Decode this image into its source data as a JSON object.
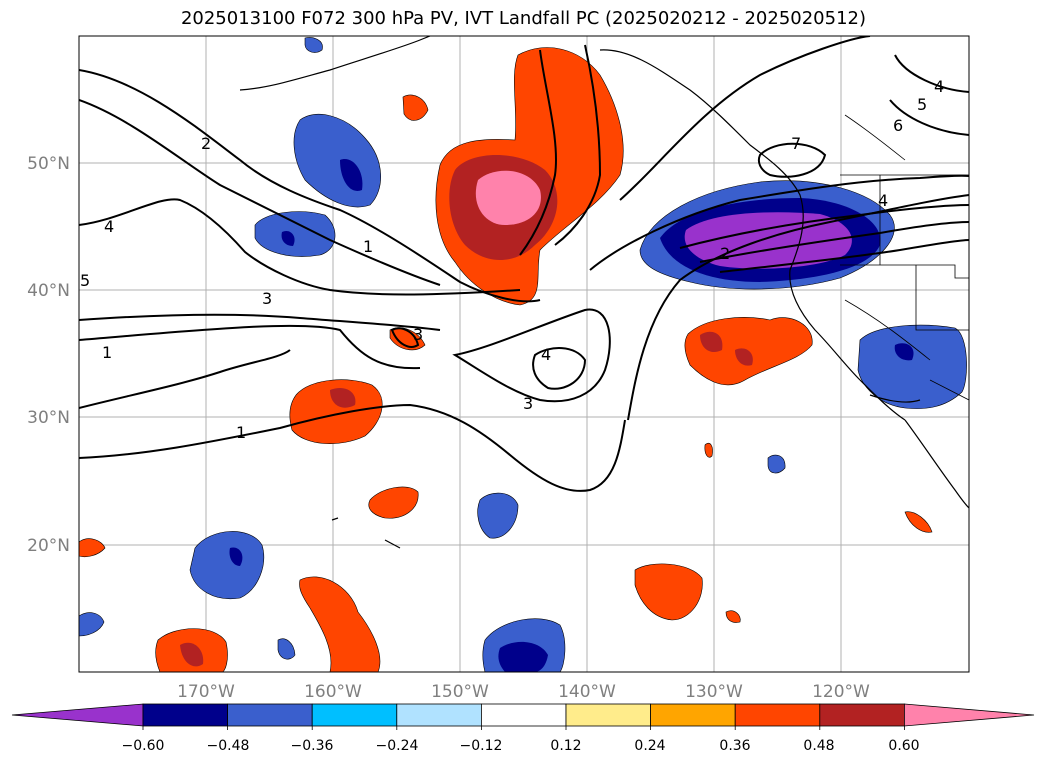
{
  "title": "2025013100 F072 300 hPa PV, IVT Landfall PC (2025020212 - 2025020512)",
  "map": {
    "lon_ticks": [
      "170°W",
      "160°W",
      "150°W",
      "140°W",
      "130°W",
      "120°W"
    ],
    "lat_ticks": [
      "50°N",
      "40°N",
      "30°N",
      "20°N"
    ],
    "contour_labels": [
      "1",
      "1",
      "1",
      "2",
      "2",
      "3",
      "3",
      "3",
      "4",
      "4",
      "4",
      "5",
      "6",
      "7",
      "4",
      "5"
    ]
  },
  "colorbar": {
    "ticks": [
      "−0.60",
      "−0.48",
      "−0.36",
      "−0.24",
      "−0.12",
      "0.12",
      "0.24",
      "0.36",
      "0.48",
      "0.60"
    ],
    "colors": [
      "#9932cc",
      "#00008b",
      "#3a5fcd",
      "#00bfff",
      "#b0e2ff",
      "#ffffff",
      "#ffec8b",
      "#ffa500",
      "#ff4500",
      "#b22222",
      "#ff82ab"
    ]
  },
  "colors": {
    "c_neg_60": "#9932cc",
    "c_neg_48": "#00008b",
    "c_neg_36": "#3a5fcd",
    "c_neg_24": "#00bfff",
    "c_neg_12": "#b0e2ff",
    "c_pos_24": "#ffec8b",
    "c_pos_36": "#ffa500",
    "c_pos_48": "#ff4500",
    "c_pos_60": "#b22222",
    "c_pos_max": "#ff82ab"
  }
}
